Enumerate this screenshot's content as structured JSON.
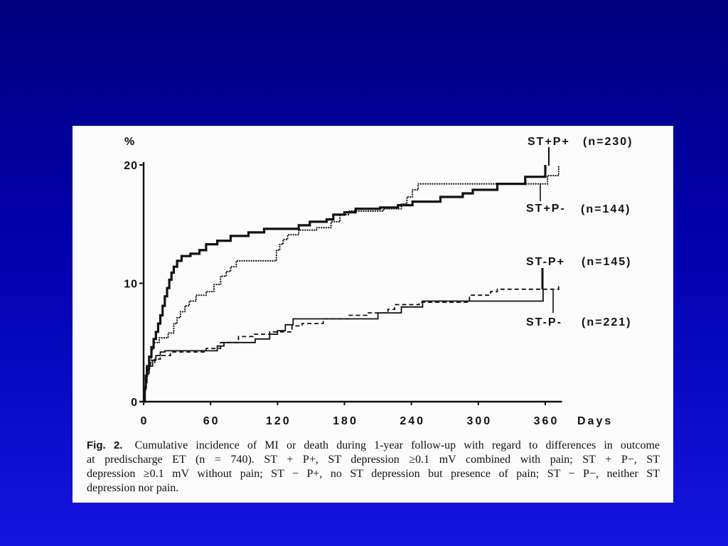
{
  "chart_data": {
    "type": "line",
    "step": true,
    "xlabel": "Days",
    "ylabel": "%",
    "xlim": [
      0,
      375
    ],
    "ylim": [
      0,
      20
    ],
    "x_ticks": [
      0,
      60,
      120,
      180,
      240,
      300,
      360
    ],
    "y_ticks": [
      0,
      10,
      20
    ],
    "grid": false,
    "series": [
      {
        "name": "ST+P+",
        "n_label": "(n=230)",
        "line_style": "thick-solid",
        "points": [
          [
            0,
            0
          ],
          [
            1,
            1.2
          ],
          [
            2,
            2.2
          ],
          [
            3,
            3.0
          ],
          [
            5,
            3.8
          ],
          [
            7,
            4.6
          ],
          [
            9,
            5.3
          ],
          [
            11,
            5.9
          ],
          [
            13,
            6.6
          ],
          [
            15,
            7.3
          ],
          [
            17,
            8.1
          ],
          [
            19,
            8.9
          ],
          [
            21,
            9.6
          ],
          [
            23,
            10.3
          ],
          [
            25,
            10.9
          ],
          [
            27,
            11.4
          ],
          [
            30,
            11.9
          ],
          [
            34,
            12.3
          ],
          [
            42,
            12.5
          ],
          [
            50,
            12.8
          ],
          [
            56,
            13.3
          ],
          [
            66,
            13.6
          ],
          [
            78,
            14.0
          ],
          [
            94,
            14.3
          ],
          [
            108,
            14.6
          ],
          [
            139,
            14.9
          ],
          [
            149,
            15.2
          ],
          [
            164,
            15.4
          ],
          [
            170,
            15.8
          ],
          [
            180,
            16.0
          ],
          [
            190,
            16.3
          ],
          [
            212,
            16.4
          ],
          [
            228,
            16.6
          ],
          [
            241,
            16.9
          ],
          [
            266,
            17.3
          ],
          [
            286,
            17.6
          ],
          [
            295,
            17.9
          ],
          [
            317,
            18.4
          ],
          [
            342,
            19.0
          ],
          [
            360,
            20.0
          ]
        ]
      },
      {
        "name": "ST+P-",
        "n_label": "(n=144)",
        "line_style": "dotted",
        "points": [
          [
            0,
            0
          ],
          [
            1,
            1.0
          ],
          [
            2,
            1.8
          ],
          [
            3,
            2.6
          ],
          [
            5,
            3.5
          ],
          [
            7,
            4.4
          ],
          [
            9,
            5.0
          ],
          [
            14,
            5.4
          ],
          [
            22,
            5.8
          ],
          [
            27,
            6.6
          ],
          [
            30,
            7.1
          ],
          [
            33,
            7.6
          ],
          [
            37,
            8.1
          ],
          [
            41,
            8.5
          ],
          [
            47,
            9.0
          ],
          [
            56,
            9.3
          ],
          [
            63,
            9.9
          ],
          [
            69,
            10.6
          ],
          [
            74,
            11.0
          ],
          [
            78,
            11.4
          ],
          [
            83,
            11.9
          ],
          [
            119,
            12.8
          ],
          [
            122,
            13.3
          ],
          [
            125,
            13.7
          ],
          [
            129,
            14.1
          ],
          [
            139,
            14.5
          ],
          [
            155,
            14.7
          ],
          [
            168,
            15.2
          ],
          [
            176,
            15.8
          ],
          [
            184,
            16.1
          ],
          [
            215,
            16.3
          ],
          [
            231,
            16.7
          ],
          [
            236,
            17.3
          ],
          [
            241,
            17.9
          ],
          [
            246,
            18.4
          ],
          [
            362,
            19.1
          ],
          [
            372,
            20.0
          ]
        ]
      },
      {
        "name": "ST-P+",
        "n_label": "(n=145)",
        "line_style": "solid",
        "points": [
          [
            0,
            0
          ],
          [
            1,
            1.0
          ],
          [
            2,
            1.8
          ],
          [
            3,
            2.4
          ],
          [
            5,
            3.0
          ],
          [
            8,
            3.5
          ],
          [
            11,
            3.9
          ],
          [
            15,
            4.2
          ],
          [
            19,
            4.3
          ],
          [
            66,
            4.7
          ],
          [
            72,
            5.0
          ],
          [
            100,
            5.3
          ],
          [
            113,
            5.7
          ],
          [
            120,
            6.0
          ],
          [
            127,
            6.5
          ],
          [
            134,
            7.0
          ],
          [
            210,
            7.5
          ],
          [
            231,
            8.0
          ],
          [
            250,
            8.5
          ],
          [
            358,
            9.5
          ]
        ]
      },
      {
        "name": "ST-P-",
        "n_label": "(n=221)",
        "line_style": "dashed",
        "points": [
          [
            0,
            0
          ],
          [
            1,
            0.9
          ],
          [
            2,
            1.6
          ],
          [
            3,
            2.3
          ],
          [
            4,
            2.8
          ],
          [
            6,
            3.3
          ],
          [
            10,
            3.6
          ],
          [
            15,
            3.9
          ],
          [
            24,
            4.2
          ],
          [
            56,
            4.5
          ],
          [
            69,
            5.0
          ],
          [
            85,
            5.5
          ],
          [
            98,
            5.7
          ],
          [
            113,
            5.9
          ],
          [
            133,
            6.4
          ],
          [
            142,
            6.6
          ],
          [
            161,
            7.0
          ],
          [
            184,
            7.3
          ],
          [
            200,
            7.5
          ],
          [
            219,
            7.8
          ],
          [
            225,
            8.2
          ],
          [
            247,
            8.4
          ],
          [
            292,
            9.0
          ],
          [
            311,
            9.3
          ],
          [
            317,
            9.5
          ],
          [
            372,
            10.0
          ]
        ]
      }
    ]
  },
  "caption": {
    "label": "Fig. 2.",
    "lines": [
      "Cumulative incidence of MI or death during 1-year follow-up with regard to differences in outcome",
      "at predischarge ET (n = 740). ST + P+, ST depression ≥0.1 mV combined with pain; ST + P−, ST",
      "depression ≥0.1 mV without pain; ST − P+, no ST depression but presence of pain; ST − P−, neither ST",
      "depression nor pain."
    ]
  },
  "colors": {
    "background_top": "#000080",
    "background_bottom": "#1414e0",
    "panel": "#fbfbfb",
    "ink": "#111111"
  }
}
